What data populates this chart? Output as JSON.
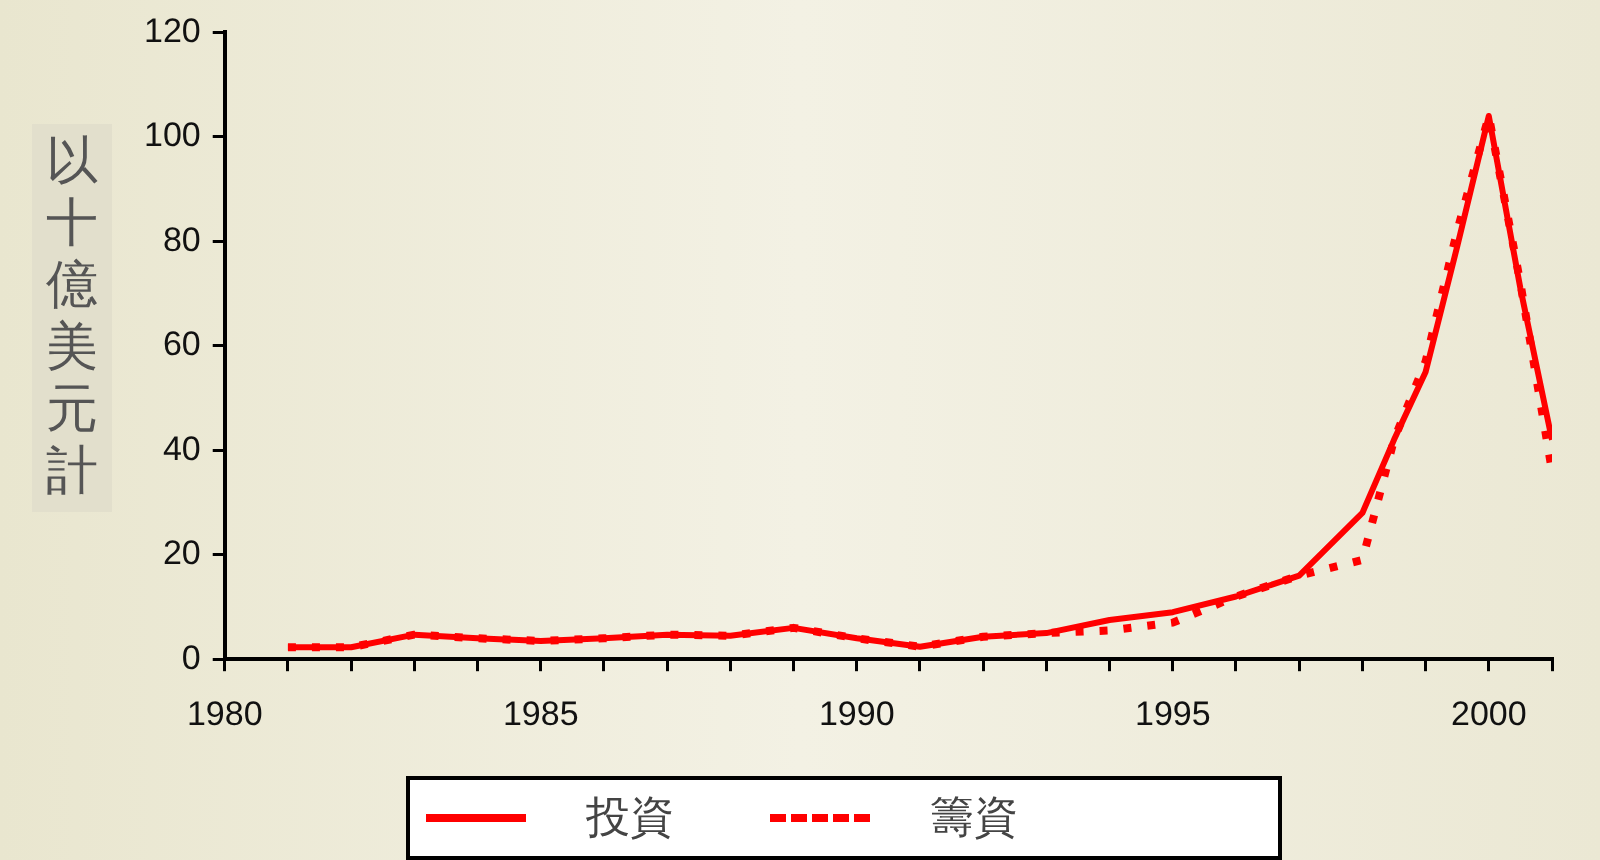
{
  "chart_data": {
    "type": "line",
    "ylabel": "以十億美元計",
    "legend": "bottom",
    "grid": false,
    "marker": "none",
    "xlim": [
      1980,
      2001
    ],
    "xticks": [
      1980,
      {
        "value": 1981,
        "label": null
      },
      {
        "value": 1982,
        "label": null
      },
      {
        "value": 1983,
        "label": null
      },
      {
        "value": 1984,
        "label": null
      },
      1985,
      {
        "value": 1986,
        "label": null
      },
      {
        "value": 1987,
        "label": null
      },
      {
        "value": 1988,
        "label": null
      },
      {
        "value": 1989,
        "label": null
      },
      1990,
      {
        "value": 1991,
        "label": null
      },
      {
        "value": 1992,
        "label": null
      },
      {
        "value": 1993,
        "label": null
      },
      {
        "value": 1994,
        "label": null
      },
      1995,
      {
        "value": 1996,
        "label": null
      },
      {
        "value": 1997,
        "label": null
      },
      {
        "value": 1998,
        "label": null
      },
      {
        "value": 1999,
        "label": null
      },
      2000,
      {
        "value": 2001,
        "label": null
      }
    ],
    "ylim": [
      0,
      120
    ],
    "yticks": [
      0,
      20,
      40,
      60,
      80,
      100,
      120
    ],
    "x": [
      1981,
      1982,
      1983,
      1984,
      1985,
      1986,
      1987,
      1988,
      1989,
      1990,
      1991,
      1992,
      1993,
      1994,
      1995,
      1996,
      1997,
      1998,
      1998.5,
      1999,
      1999.5,
      2000,
      2000.5,
      2001
    ],
    "series": [
      {
        "name": "投資",
        "color": "#ff0000",
        "line_style": "solid",
        "values": [
          2.3,
          2.3,
          4.7,
          4,
          3.5,
          4,
          4.7,
          4.5,
          6,
          4,
          2.4,
          4.3,
          5,
          7.5,
          9,
          12,
          16,
          28,
          42,
          55,
          79,
          104,
          71,
          42
        ]
      },
      {
        "name": "籌資",
        "color": "#ff0000",
        "line_style": "dotted",
        "values": [
          2.3,
          2.3,
          4.7,
          4,
          3.5,
          4,
          4.7,
          4.5,
          6,
          4,
          2.4,
          4.3,
          5,
          5.5,
          7,
          12,
          16,
          19,
          42,
          57,
          82,
          104,
          72,
          36
        ]
      }
    ]
  }
}
